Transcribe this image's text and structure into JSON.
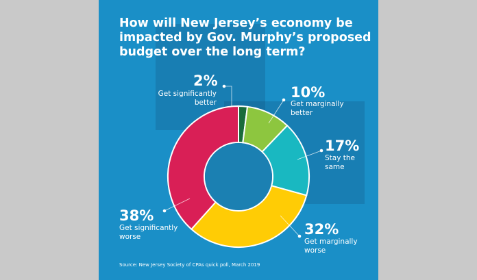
{
  "chart_data": {
    "type": "pie",
    "variant": "donut",
    "title": "How will New Jersey’s economy be impacted by Gov. Murphy’s proposed budget over the long term?",
    "source": "Source: New Jersey Society of CPAs quick poll, March 2019",
    "slices": [
      {
        "label": "Get significantly better",
        "value": 2,
        "display": "2%",
        "color": "#1a6b3a"
      },
      {
        "label": "Get marginally better",
        "value": 10,
        "display": "10%",
        "color": "#8dc63f"
      },
      {
        "label": "Stay the same",
        "value": 17,
        "display": "17%",
        "color": "#19b8c1"
      },
      {
        "label": "Get marginally worse",
        "value": 32,
        "display": "32%",
        "color": "#ffcc05"
      },
      {
        "label": "Get significantly worse",
        "value": 38,
        "display": "38%",
        "color": "#d91f56"
      }
    ]
  },
  "colors": {
    "background": "#1a8fc7",
    "outside": "#c9c9c9"
  }
}
